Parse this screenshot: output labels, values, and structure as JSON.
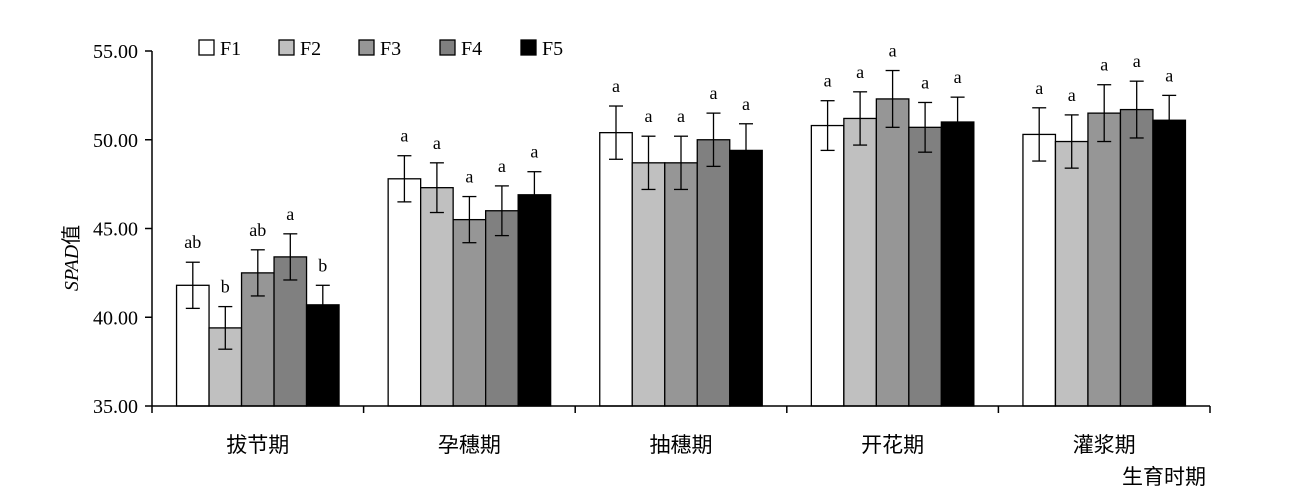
{
  "chart_data": {
    "type": "bar",
    "ylabel": "SPAD值",
    "ylabel_italic_part": "SPAD",
    "ylabel_plain_part": "值",
    "xlabel": "生育时期",
    "categories": [
      "拔节期",
      "孕穗期",
      "抽穗期",
      "开花期",
      "灌浆期"
    ],
    "ylim": [
      35,
      55
    ],
    "yticks": [
      35,
      40,
      45,
      50,
      55
    ],
    "ytick_labels": [
      "35.00",
      "40.00",
      "45.00",
      "50.00",
      "55.00"
    ],
    "grid": false,
    "legend_position": "top-left",
    "series": [
      {
        "name": "F1",
        "color": "#ffffff",
        "values": [
          41.8,
          47.8,
          50.4,
          50.8,
          50.3
        ],
        "errors": [
          1.3,
          1.3,
          1.5,
          1.4,
          1.5
        ],
        "labels": [
          "ab",
          "a",
          "a",
          "a",
          "a"
        ]
      },
      {
        "name": "F2",
        "color": "#c0c0c0",
        "values": [
          39.4,
          47.3,
          48.7,
          51.2,
          49.9
        ],
        "errors": [
          1.2,
          1.4,
          1.5,
          1.5,
          1.5
        ],
        "labels": [
          "b",
          "a",
          "a",
          "a",
          "a"
        ]
      },
      {
        "name": "F3",
        "color": "#969696",
        "values": [
          42.5,
          45.5,
          48.7,
          52.3,
          51.5
        ],
        "errors": [
          1.3,
          1.3,
          1.5,
          1.6,
          1.6
        ],
        "labels": [
          "ab",
          "a",
          "a",
          "a",
          "a"
        ]
      },
      {
        "name": "F4",
        "color": "#808080",
        "values": [
          43.4,
          46.0,
          50.0,
          50.7,
          51.7
        ],
        "errors": [
          1.3,
          1.4,
          1.5,
          1.4,
          1.6
        ],
        "labels": [
          "a",
          "a",
          "a",
          "a",
          "a"
        ]
      },
      {
        "name": "F5",
        "color": "#000000",
        "values": [
          40.7,
          46.9,
          49.4,
          51.0,
          51.1
        ],
        "errors": [
          1.1,
          1.3,
          1.5,
          1.4,
          1.4
        ],
        "labels": [
          "b",
          "a",
          "a",
          "a",
          "a"
        ]
      }
    ]
  }
}
